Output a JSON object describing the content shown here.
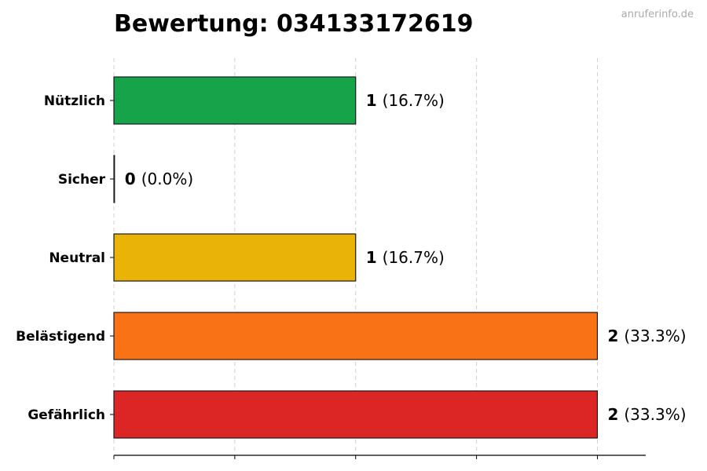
{
  "chart_data": {
    "type": "bar",
    "orientation": "horizontal",
    "title": "Bewertung: 034133172619",
    "watermark": "anruferinfo.de",
    "categories": [
      "Nützlich",
      "Sicher",
      "Neutral",
      "Belästigend",
      "Gefährlich"
    ],
    "values": [
      1,
      0,
      1,
      2,
      2
    ],
    "value_labels": [
      "1",
      "0",
      "1",
      "2",
      "2"
    ],
    "percent_labels": [
      "(16.7%)",
      "(0.0%)",
      "(16.7%)",
      "(33.3%)",
      "(33.3%)"
    ],
    "colors": [
      "#16a34a",
      "#16a34a",
      "#eab308",
      "#f97316",
      "#dc2626"
    ],
    "xlim": [
      0,
      2.2
    ],
    "grid_ticks": [
      0,
      0.5,
      1,
      1.5,
      2
    ],
    "grid": "vertical-dashed",
    "legend": "none",
    "show_tick_labels": false
  }
}
